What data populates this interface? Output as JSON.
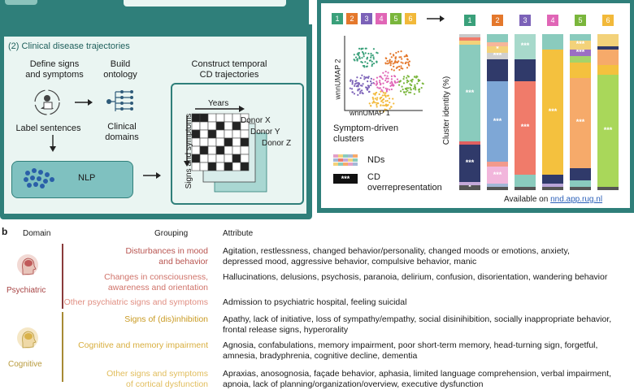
{
  "panel_top": {
    "section_label": "(2)  Clinical disease trajectories",
    "define_signs": "Define signs\nand symptoms",
    "build_ontology": "Build\nontology",
    "construct": "Construct temporal\nCD trajectories",
    "label_sentences": "Label sentences",
    "clinical_domains": "Clinical\ndomains",
    "nlp": "NLP",
    "years": "Years",
    "signs_and_symptoms": "Signs and symptoms",
    "donor_x": "Donor X",
    "donor_y": "Donor Y",
    "donor_z": "Donor Z"
  },
  "panel_right": {
    "umap_y": "wnnUMAP 2",
    "umap_x": "wnnUMAP 1",
    "clusters_label": "Symptom-driven\nclusters",
    "nds_label": "NDs",
    "cd_box": "***",
    "cd_label": "CD\noverrepresentation",
    "ylabel": "Cluster identity (%)",
    "available_prefix": "Available on ",
    "available_link": "nnd.app.rug.nl",
    "chips": [
      "1",
      "2",
      "3",
      "4",
      "5",
      "6"
    ],
    "chip_colors": [
      "#3aa07a",
      "#e4782c",
      "#7c62b8",
      "#e066b6",
      "#7ab63c",
      "#f2b93a"
    ]
  },
  "chart_data": {
    "type": "bar",
    "categories": [
      "1",
      "2",
      "3",
      "4",
      "5",
      "6"
    ],
    "category_colors": [
      "#3aa07a",
      "#e4782c",
      "#7c62b8",
      "#e066b6",
      "#7ab63c",
      "#f2b93a"
    ],
    "ylabel": "Cluster identity (%)",
    "stacks": [
      [
        {
          "c": "#555555",
          "v": 3,
          "l": "*"
        },
        {
          "c": "#c4a8d8",
          "v": 2
        },
        {
          "c": "#303a6a",
          "v": 24,
          "l": "***"
        },
        {
          "c": "#e06060",
          "v": 2
        },
        {
          "c": "#8acbbd",
          "v": 62,
          "l": "***"
        },
        {
          "c": "#f3d27a",
          "v": 3
        },
        {
          "c": "#f07b6a",
          "v": 2
        },
        {
          "c": "#c9c9c9",
          "v": 2
        }
      ],
      [
        {
          "c": "#555555",
          "v": 2
        },
        {
          "c": "#a4b7d6",
          "v": 2
        },
        {
          "c": "#f2b6dc",
          "v": 11,
          "l": "***"
        },
        {
          "c": "#f29a8c",
          "v": 3
        },
        {
          "c": "#7ea7d6",
          "v": 52,
          "l": "***"
        },
        {
          "c": "#303a6a",
          "v": 14
        },
        {
          "c": "#d0d0d0",
          "v": 4,
          "l": "***"
        },
        {
          "c": "#f3d27a",
          "v": 4,
          "l": "*"
        },
        {
          "c": "#f6b69a",
          "v": 3
        },
        {
          "c": "#8acbbd",
          "v": 5
        }
      ],
      [
        {
          "c": "#555555",
          "v": 2
        },
        {
          "c": "#8acbbd",
          "v": 8
        },
        {
          "c": "#f07b6a",
          "v": 60,
          "l": "***"
        },
        {
          "c": "#303a6a",
          "v": 14
        },
        {
          "c": "#a7d9cb",
          "v": 16,
          "l": "***"
        }
      ],
      [
        {
          "c": "#555555",
          "v": 2
        },
        {
          "c": "#b8a5d8",
          "v": 2
        },
        {
          "c": "#303a6a",
          "v": 6
        },
        {
          "c": "#f4c13e",
          "v": 80,
          "l": "***"
        },
        {
          "c": "#8acbbd",
          "v": 10
        }
      ],
      [
        {
          "c": "#555555",
          "v": 2
        },
        {
          "c": "#8acbbd",
          "v": 4
        },
        {
          "c": "#303a6a",
          "v": 8
        },
        {
          "c": "#f6aa6a",
          "v": 58,
          "l": "***"
        },
        {
          "c": "#f4c13e",
          "v": 10
        },
        {
          "c": "#a4d36a",
          "v": 4
        },
        {
          "c": "#9b6fc4",
          "v": 4,
          "l": "***"
        },
        {
          "c": "#f3d27a",
          "v": 6,
          "l": "***"
        },
        {
          "c": "#8acbbd",
          "v": 4
        }
      ],
      [
        {
          "c": "#555555",
          "v": 2
        },
        {
          "c": "#a9d75a",
          "v": 72,
          "l": "***"
        },
        {
          "c": "#f4c13e",
          "v": 6
        },
        {
          "c": "#f6aa6a",
          "v": 10
        },
        {
          "c": "#303a6a",
          "v": 2
        },
        {
          "c": "#f3d27a",
          "v": 8
        }
      ]
    ]
  },
  "panel_b": {
    "letter": "b",
    "col_domain": "Domain",
    "col_grouping": "Grouping",
    "col_attribute": "Attribute",
    "domains": [
      {
        "name": "Psychiatric",
        "color": "#a84444",
        "grp_color": "#b85450",
        "rows": [
          {
            "grouping": "Disturbances in mood\nand behavior",
            "attribute": "Agitation, restlessness, changed behavior/personality, changed moods or emotions, anxiety,\ndepressed mood, aggressive behavior, compulsive behavior, manic"
          },
          {
            "grouping": "Changes in consciousness,\nawareness and orientation",
            "attribute": "Hallucinations, delusions, psychosis, paranoia, delirium, confusion, disorientation, wandering behavior"
          },
          {
            "grouping": "Other psychiatric signs and symptoms",
            "attribute": "Admission to psychiatric hospital, feeling suicidal"
          }
        ]
      },
      {
        "name": "Cognitive",
        "color": "#b89a3c",
        "grp_color": "#d2a53a",
        "rows": [
          {
            "grouping": "Signs of (dis)inhibition",
            "attribute": "Apathy, lack of initiative, loss of sympathy/empathy, social disinihibition, socially inappropriate behavior,\nfrontal release signs, hyperorality"
          },
          {
            "grouping": "Cognitive and memory impairment",
            "attribute": "Agnosia, confabulations, memory impairment, poor short-term memory, head-turning sign, forgetful,\namnesia, bradyphrenia, cognitive decline, dementia"
          },
          {
            "grouping": "Other signs and symptoms\nof cortical dysfunction",
            "attribute": "Apraxias, anosognosia, façade behavior, aphasia, limited language comprehension, verbal impairment,\napnoia, lack of planning/organization/overview, executive dysfunction"
          }
        ]
      }
    ]
  }
}
